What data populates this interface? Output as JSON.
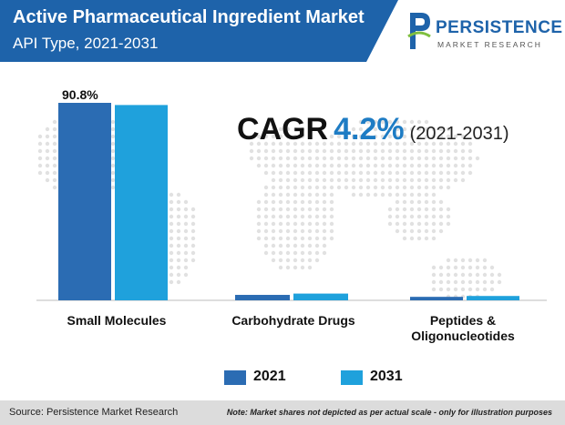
{
  "header": {
    "title": "Active Pharmaceutical Ingredient Market",
    "subtitle": "API Type, 2021-2031",
    "banner_color": "#1e63aa"
  },
  "logo": {
    "word": "PERSISTENCE",
    "sub": "MARKET RESEARCH",
    "icon": "persistence-logo-icon"
  },
  "cagr": {
    "label": "CAGR",
    "value": "4.2%",
    "period": "(2021-2031)"
  },
  "chart_data": {
    "type": "bar",
    "categories": [
      "Small Molecules",
      "Carbohydrate Drugs",
      "Peptides & Oligonucleotides"
    ],
    "series": [
      {
        "name": "2021",
        "values": [
          90.8,
          2.5,
          1.6
        ],
        "color": "#2b6cb3"
      },
      {
        "name": "2031",
        "values": [
          89.8,
          3.1,
          2.0
        ],
        "color": "#1fa1dc"
      }
    ],
    "data_labels": [
      {
        "category": "Small Molecules",
        "series": "2021",
        "text": "90.8%"
      }
    ],
    "ylim": [
      0,
      100
    ],
    "grid": false,
    "legend_position": "bottom"
  },
  "legend": {
    "items": [
      {
        "label": "2021",
        "color": "#2b6cb3"
      },
      {
        "label": "2031",
        "color": "#1fa1dc"
      }
    ]
  },
  "footer": {
    "source": "Source: Persistence Market Research",
    "note": "Note: Market shares not depicted as per actual scale - only for illustration purposes"
  }
}
